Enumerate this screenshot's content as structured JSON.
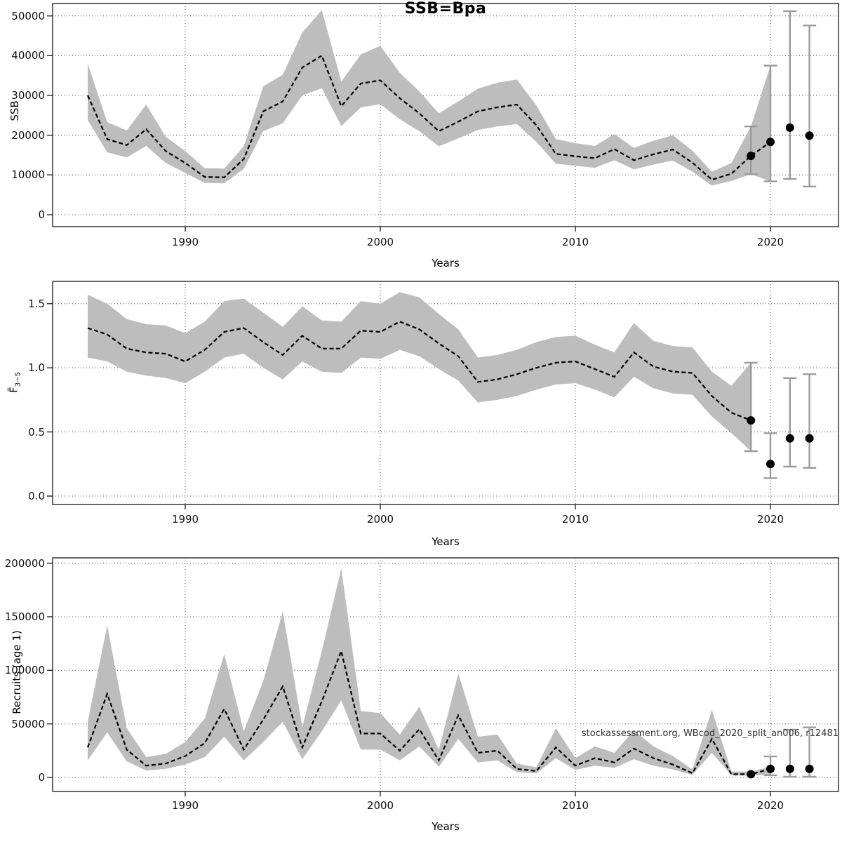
{
  "figure": {
    "title": "SSB=Bpa",
    "xlabel": "Years",
    "watermark": "stockassessment.org, WBcod_2020_split_an006, r12481",
    "x_ticks": [
      {
        "value": 1990,
        "label": "1990"
      },
      {
        "value": 2000,
        "label": "2000"
      },
      {
        "value": 2010,
        "label": "2010"
      },
      {
        "value": 2020,
        "label": "2020"
      }
    ],
    "colors": {
      "band": "#bdbdbd",
      "line": "#000000",
      "grid": "#595959",
      "frame": "#262626",
      "error_bar": "#9b9b9b",
      "dot": "#000000"
    },
    "grid": "dotted"
  },
  "chart_data": [
    {
      "type": "line",
      "name": "ssb",
      "title": "SSB=Bpa",
      "ylabel": "SSB",
      "ylim": [
        0,
        53000
      ],
      "xlim": [
        1983.2,
        2023.5
      ],
      "y_ticks": [
        {
          "value": 0,
          "label": "0"
        },
        {
          "value": 10000,
          "label": "10000"
        },
        {
          "value": 20000,
          "label": "20000"
        },
        {
          "value": 30000,
          "label": "30000"
        },
        {
          "value": 40000,
          "label": "40000"
        },
        {
          "value": 50000,
          "label": "50000"
        }
      ],
      "years": [
        1985,
        1986,
        1987,
        1988,
        1989,
        1990,
        1991,
        1992,
        1993,
        1994,
        1995,
        1996,
        1997,
        1998,
        1999,
        2000,
        2001,
        2002,
        2003,
        2004,
        2005,
        2006,
        2007,
        2008,
        2009,
        2010,
        2011,
        2012,
        2013,
        2014,
        2015,
        2016,
        2017,
        2018,
        2019,
        2020
      ],
      "values": [
        30000,
        19000,
        17500,
        21500,
        16000,
        13000,
        9500,
        9400,
        14000,
        26000,
        28500,
        37000,
        40000,
        27300,
        33000,
        33800,
        29300,
        25500,
        21000,
        23400,
        26000,
        27000,
        27700,
        22500,
        15300,
        14700,
        14200,
        16500,
        13700,
        15200,
        16400,
        13100,
        8800,
        10300,
        14800,
        18300
      ],
      "lower": [
        23800,
        15700,
        14400,
        17300,
        13000,
        10500,
        8000,
        7900,
        11500,
        21000,
        23000,
        30000,
        31800,
        22300,
        27000,
        27800,
        24000,
        21000,
        17200,
        19200,
        21300,
        22200,
        22800,
        18300,
        12800,
        12300,
        11800,
        13700,
        11400,
        12600,
        13600,
        10800,
        7300,
        8500,
        10200,
        8400
      ],
      "upper": [
        38000,
        23300,
        21200,
        27700,
        19600,
        16000,
        11700,
        11600,
        17200,
        32300,
        35200,
        45800,
        51500,
        33500,
        40300,
        42500,
        35700,
        31000,
        25500,
        28500,
        31700,
        33200,
        34000,
        27500,
        19000,
        18000,
        17300,
        20300,
        16800,
        18600,
        20000,
        16100,
        10800,
        13000,
        22200,
        37500
      ],
      "forecast": {
        "points": [
          {
            "year": 2019,
            "value": 14800
          },
          {
            "year": 2020,
            "value": 18300
          },
          {
            "year": 2021,
            "value": 21900
          },
          {
            "year": 2022,
            "value": 19900
          }
        ],
        "bars": [
          {
            "year": 2019,
            "lo": 10200,
            "hi": 22200
          },
          {
            "year": 2020,
            "lo": 8400,
            "hi": 37500
          },
          {
            "year": 2021,
            "lo": 9000,
            "hi": 51200
          },
          {
            "year": 2022,
            "lo": 7100,
            "hi": 47600
          }
        ]
      }
    },
    {
      "type": "line",
      "name": "fbar",
      "ylabel_main": "F̄",
      "ylabel_sub": "3−5",
      "ylim": [
        0,
        1.67
      ],
      "xlim": [
        1983.2,
        2023.5
      ],
      "y_ticks": [
        {
          "value": 0,
          "label": "0.0"
        },
        {
          "value": 0.5,
          "label": "0.5"
        },
        {
          "value": 1,
          "label": "1.0"
        },
        {
          "value": 1.5,
          "label": "1.5"
        }
      ],
      "years": [
        1985,
        1986,
        1987,
        1988,
        1989,
        1990,
        1991,
        1992,
        1993,
        1994,
        1995,
        1996,
        1997,
        1998,
        1999,
        2000,
        2001,
        2002,
        2003,
        2004,
        2005,
        2006,
        2007,
        2008,
        2009,
        2010,
        2011,
        2012,
        2013,
        2014,
        2015,
        2016,
        2017,
        2018,
        2019
      ],
      "values": [
        1.31,
        1.26,
        1.15,
        1.12,
        1.11,
        1.05,
        1.14,
        1.28,
        1.31,
        1.2,
        1.1,
        1.25,
        1.15,
        1.15,
        1.29,
        1.28,
        1.36,
        1.3,
        1.19,
        1.09,
        0.89,
        0.91,
        0.95,
        1.0,
        1.04,
        1.05,
        0.99,
        0.93,
        1.12,
        1.01,
        0.97,
        0.96,
        0.78,
        0.65,
        0.59
      ],
      "lower": [
        1.08,
        1.05,
        0.97,
        0.94,
        0.92,
        0.88,
        0.97,
        1.08,
        1.11,
        1.0,
        0.91,
        1.05,
        0.97,
        0.96,
        1.08,
        1.07,
        1.14,
        1.09,
        0.99,
        0.9,
        0.73,
        0.75,
        0.78,
        0.83,
        0.87,
        0.88,
        0.83,
        0.77,
        0.93,
        0.84,
        0.8,
        0.79,
        0.62,
        0.49,
        0.35
      ],
      "upper": [
        1.57,
        1.5,
        1.38,
        1.34,
        1.33,
        1.27,
        1.36,
        1.52,
        1.54,
        1.43,
        1.32,
        1.48,
        1.37,
        1.36,
        1.52,
        1.5,
        1.59,
        1.55,
        1.42,
        1.3,
        1.08,
        1.1,
        1.14,
        1.2,
        1.24,
        1.25,
        1.18,
        1.12,
        1.35,
        1.21,
        1.17,
        1.16,
        0.97,
        0.86,
        1.04
      ],
      "forecast": {
        "points": [
          {
            "year": 2019,
            "value": 0.59
          },
          {
            "year": 2020,
            "value": 0.25
          },
          {
            "year": 2021,
            "value": 0.45
          },
          {
            "year": 2022,
            "value": 0.45
          }
        ],
        "bars": [
          {
            "year": 2019,
            "lo": 0.35,
            "hi": 1.04
          },
          {
            "year": 2020,
            "lo": 0.14,
            "hi": 0.49
          },
          {
            "year": 2021,
            "lo": 0.23,
            "hi": 0.92
          },
          {
            "year": 2022,
            "lo": 0.22,
            "hi": 0.95
          }
        ]
      }
    },
    {
      "type": "line",
      "name": "recruits",
      "ylabel": "Recruits (age 1)",
      "ylim": [
        0,
        205000
      ],
      "xlim": [
        1983.2,
        2023.5
      ],
      "y_ticks": [
        {
          "value": 0,
          "label": "0"
        },
        {
          "value": 50000,
          "label": "50000"
        },
        {
          "value": 100000,
          "label": "100000"
        },
        {
          "value": 150000,
          "label": "150000"
        },
        {
          "value": 200000,
          "label": "200000"
        }
      ],
      "years": [
        1985,
        1986,
        1987,
        1988,
        1989,
        1990,
        1991,
        1992,
        1993,
        1994,
        1995,
        1996,
        1997,
        1998,
        1999,
        2000,
        2001,
        2002,
        2003,
        2004,
        2005,
        2006,
        2007,
        2008,
        2009,
        2010,
        2011,
        2012,
        2013,
        2014,
        2015,
        2016,
        2017,
        2018,
        2019,
        2020
      ],
      "values": [
        28000,
        78000,
        26000,
        11000,
        13000,
        20000,
        32000,
        64000,
        26000,
        54000,
        85000,
        28000,
        71000,
        118000,
        41000,
        41000,
        25000,
        45000,
        16000,
        58000,
        23000,
        25000,
        8000,
        6000,
        28000,
        11000,
        18000,
        14000,
        27000,
        18000,
        12000,
        4000,
        36000,
        3000,
        3000,
        8000
      ],
      "lower": [
        16000,
        42000,
        15000,
        6500,
        8000,
        12000,
        19000,
        38000,
        16000,
        33000,
        52000,
        17000,
        43000,
        72000,
        26000,
        26000,
        16000,
        29000,
        10000,
        36000,
        14000,
        16000,
        5000,
        3800,
        18000,
        7000,
        11000,
        9000,
        17000,
        11000,
        7500,
        2500,
        23000,
        1800,
        1800,
        2600
      ],
      "upper": [
        52000,
        142000,
        46000,
        19000,
        22000,
        33000,
        55000,
        115000,
        43000,
        90000,
        155000,
        47000,
        118000,
        195000,
        62000,
        60000,
        40000,
        66000,
        26000,
        97000,
        38000,
        40000,
        13000,
        9500,
        46000,
        18000,
        29000,
        23000,
        44000,
        29000,
        20000,
        7500,
        63000,
        5500,
        5500,
        10000
      ],
      "forecast": {
        "points": [
          {
            "year": 2019,
            "value": 3000
          },
          {
            "year": 2020,
            "value": 8000
          },
          {
            "year": 2021,
            "value": 8000
          },
          {
            "year": 2022,
            "value": 8000
          }
        ],
        "bars": [
          {
            "year": 2020,
            "lo": 2000,
            "hi": 19600
          },
          {
            "year": 2021,
            "lo": 700,
            "hi": 44600
          },
          {
            "year": 2022,
            "lo": 700,
            "hi": 46700
          }
        ]
      }
    }
  ]
}
